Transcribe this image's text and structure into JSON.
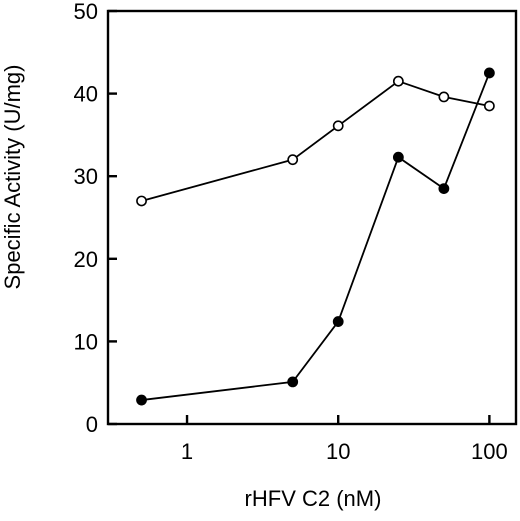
{
  "chart_data": {
    "type": "line",
    "xlabel": "rHFV C2 (nM)",
    "ylabel": "Specific Activity (U/mg)",
    "x_scale": "log",
    "xlim": [
      0.3,
      150
    ],
    "ylim": [
      0,
      50
    ],
    "x_ticks": [
      1,
      10,
      100
    ],
    "x_tick_labels": [
      "1",
      "10",
      "100"
    ],
    "y_ticks": [
      0,
      10,
      20,
      30,
      40,
      50
    ],
    "y_tick_labels": [
      "0",
      "10",
      "20",
      "30",
      "40",
      "50"
    ],
    "grid": false,
    "legend": "none",
    "series": [
      {
        "marker": "open-circle",
        "color": "#000000",
        "x": [
          0.5,
          5,
          10,
          25,
          50,
          100
        ],
        "y": [
          27,
          32,
          36.1,
          41.5,
          39.6,
          38.5
        ]
      },
      {
        "marker": "filled-circle",
        "color": "#000000",
        "x": [
          0.5,
          5,
          10,
          25,
          50,
          100
        ],
        "y": [
          2.9,
          5.1,
          12.4,
          32.3,
          28.5,
          42.5
        ]
      }
    ]
  }
}
